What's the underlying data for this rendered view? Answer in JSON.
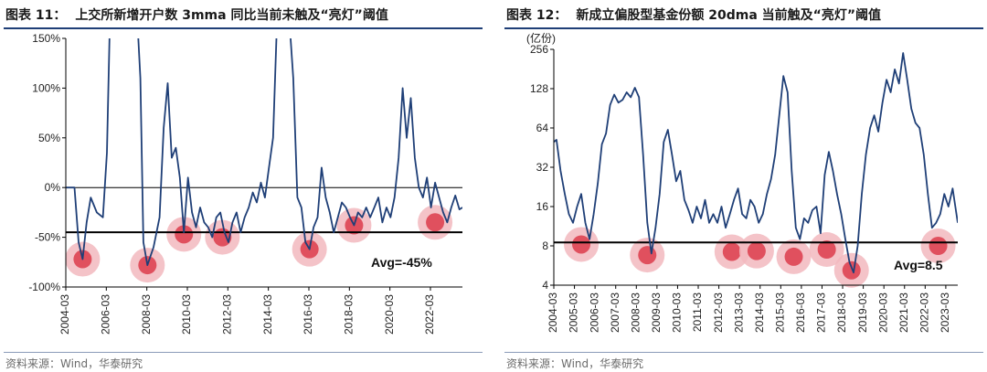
{
  "source_label": "资料来源：Wind，华泰研究",
  "chart_data": [
    {
      "id": "fig11",
      "type": "line",
      "figure_label": "图表 11：",
      "title": "上交所新增开户数 3mma 同比当前未触及“亮灯”阈值",
      "xlabel": "",
      "ylabel": "",
      "ylim": [
        -1.0,
        1.5
      ],
      "yticks": [
        -1.0,
        -0.5,
        0.0,
        0.5,
        1.0,
        1.5
      ],
      "ytick_labels": [
        "-100%",
        "-50%",
        "0%",
        "50%",
        "100%",
        "150%"
      ],
      "xlim": [
        2004.17,
        2023.75
      ],
      "xticks": [
        2004.17,
        2006.17,
        2008.17,
        2010.17,
        2012.17,
        2014.17,
        2016.17,
        2018.17,
        2020.17,
        2022.17
      ],
      "xtick_labels": [
        "2004-03",
        "2006-03",
        "2008-03",
        "2010-03",
        "2012-03",
        "2014-03",
        "2016-03",
        "2018-03",
        "2020-03",
        "2022-03"
      ],
      "grid": false,
      "legend": "none",
      "line_color": "#1f3f77",
      "threshold": {
        "value": -0.45,
        "label": "Avg=-45%"
      },
      "series": [
        {
          "x": [
            2004.17,
            2004.6,
            2004.8,
            2005.0,
            2005.2,
            2005.4,
            2005.7,
            2006.0,
            2006.2,
            2006.35,
            2006.5,
            2006.7,
            2006.9,
            2007.1,
            2007.3,
            2007.5,
            2007.7,
            2007.85,
            2008.0,
            2008.2,
            2008.5,
            2008.8,
            2009.0,
            2009.2,
            2009.4,
            2009.6,
            2009.8,
            2010.0,
            2010.2,
            2010.4,
            2010.6,
            2010.8,
            2011.0,
            2011.2,
            2011.4,
            2011.6,
            2011.8,
            2012.0,
            2012.2,
            2012.4,
            2012.6,
            2012.8,
            2013.0,
            2013.2,
            2013.4,
            2013.6,
            2013.8,
            2014.0,
            2014.2,
            2014.4,
            2014.6,
            2014.8,
            2015.0,
            2015.2,
            2015.4,
            2015.6,
            2015.8,
            2016.0,
            2016.2,
            2016.4,
            2016.6,
            2016.8,
            2017.0,
            2017.2,
            2017.4,
            2017.6,
            2017.8,
            2018.0,
            2018.2,
            2018.4,
            2018.6,
            2018.8,
            2019.0,
            2019.2,
            2019.4,
            2019.6,
            2019.8,
            2020.0,
            2020.2,
            2020.4,
            2020.6,
            2020.8,
            2021.0,
            2021.2,
            2021.4,
            2021.6,
            2021.8,
            2022.0,
            2022.2,
            2022.4,
            2022.6,
            2022.8,
            2023.0,
            2023.2,
            2023.4,
            2023.6,
            2023.75
          ],
          "y": [
            0.0,
            0.0,
            -0.55,
            -0.72,
            -0.35,
            -0.1,
            -0.25,
            -0.3,
            0.35,
            1.7,
            1.7,
            1.7,
            1.7,
            1.7,
            1.7,
            1.7,
            1.7,
            1.1,
            -0.55,
            -0.78,
            -0.6,
            -0.3,
            0.6,
            1.05,
            0.3,
            0.4,
            0.1,
            -0.45,
            0.1,
            -0.25,
            -0.4,
            -0.2,
            -0.35,
            -0.4,
            -0.5,
            -0.3,
            -0.25,
            -0.45,
            -0.55,
            -0.35,
            -0.25,
            -0.45,
            -0.3,
            -0.2,
            -0.05,
            -0.15,
            0.05,
            -0.1,
            0.2,
            0.5,
            1.7,
            1.7,
            1.7,
            1.7,
            1.1,
            -0.1,
            -0.2,
            -0.55,
            -0.62,
            -0.4,
            -0.3,
            0.2,
            -0.1,
            -0.25,
            -0.45,
            -0.3,
            -0.15,
            -0.2,
            -0.3,
            -0.38,
            -0.25,
            -0.3,
            -0.2,
            -0.3,
            -0.2,
            -0.1,
            -0.35,
            -0.2,
            -0.3,
            -0.1,
            0.3,
            1.0,
            0.5,
            0.9,
            0.3,
            0.0,
            -0.1,
            0.1,
            -0.2,
            0.05,
            -0.1,
            -0.25,
            -0.35,
            -0.2,
            -0.08,
            -0.22,
            -0.2
          ]
        }
      ],
      "highlights": [
        {
          "x": 2005.0,
          "y": -0.72
        },
        {
          "x": 2008.2,
          "y": -0.78
        },
        {
          "x": 2010.0,
          "y": -0.47
        },
        {
          "x": 2011.9,
          "y": -0.5
        },
        {
          "x": 2016.2,
          "y": -0.62
        },
        {
          "x": 2018.4,
          "y": -0.38
        },
        {
          "x": 2022.4,
          "y": -0.35
        }
      ]
    },
    {
      "id": "fig12",
      "type": "line",
      "figure_label": "图表 12：",
      "title": "新成立偏股型基金份额 20dma 当前触及“亮灯”阈值",
      "unit_label": "(亿份)",
      "xlabel": "",
      "ylabel": "",
      "yscale": "log2",
      "ylim": [
        4,
        256
      ],
      "yticks": [
        4,
        8,
        16,
        32,
        64,
        128,
        256
      ],
      "ytick_labels": [
        "4",
        "8",
        "16",
        "32",
        "64",
        "128",
        "256"
      ],
      "xlim": [
        2004.17,
        2023.75
      ],
      "xticks": [
        2004.17,
        2005.17,
        2006.17,
        2007.17,
        2008.17,
        2009.17,
        2010.17,
        2011.17,
        2012.17,
        2013.17,
        2014.17,
        2015.17,
        2016.17,
        2017.17,
        2018.17,
        2019.17,
        2020.17,
        2021.17,
        2022.17,
        2023.17
      ],
      "xtick_labels": [
        "2004-03",
        "2005-03",
        "2006-03",
        "2007-03",
        "2008-03",
        "2009-03",
        "2010-03",
        "2011-03",
        "2012-03",
        "2013-03",
        "2014-03",
        "2015-03",
        "2016-03",
        "2017-03",
        "2018-03",
        "2019-03",
        "2020-03",
        "2021-03",
        "2022-03",
        "2023-03"
      ],
      "grid": false,
      "legend": "none",
      "line_color": "#1f3f77",
      "threshold": {
        "value": 8.5,
        "label": "Avg=8.5"
      },
      "series": [
        {
          "x": [
            2004.17,
            2004.3,
            2004.5,
            2004.7,
            2004.9,
            2005.1,
            2005.3,
            2005.5,
            2005.7,
            2005.9,
            2006.1,
            2006.3,
            2006.5,
            2006.7,
            2006.9,
            2007.1,
            2007.3,
            2007.5,
            2007.7,
            2007.9,
            2008.1,
            2008.3,
            2008.5,
            2008.7,
            2008.9,
            2009.1,
            2009.3,
            2009.5,
            2009.7,
            2009.9,
            2010.1,
            2010.3,
            2010.5,
            2010.7,
            2010.9,
            2011.1,
            2011.3,
            2011.5,
            2011.7,
            2011.9,
            2012.1,
            2012.3,
            2012.5,
            2012.7,
            2012.9,
            2013.1,
            2013.3,
            2013.5,
            2013.7,
            2013.9,
            2014.1,
            2014.3,
            2014.5,
            2014.7,
            2014.9,
            2015.1,
            2015.3,
            2015.5,
            2015.7,
            2015.9,
            2016.1,
            2016.3,
            2016.5,
            2016.7,
            2016.9,
            2017.1,
            2017.3,
            2017.5,
            2017.7,
            2017.9,
            2018.1,
            2018.3,
            2018.5,
            2018.7,
            2018.9,
            2019.1,
            2019.3,
            2019.5,
            2019.7,
            2019.9,
            2020.1,
            2020.3,
            2020.5,
            2020.7,
            2020.9,
            2021.1,
            2021.3,
            2021.5,
            2021.7,
            2021.9,
            2022.1,
            2022.3,
            2022.5,
            2022.7,
            2022.9,
            2023.1,
            2023.3,
            2023.5,
            2023.75
          ],
          "y": [
            50,
            52,
            30,
            20,
            14,
            12,
            16,
            20,
            12,
            9,
            14,
            24,
            48,
            58,
            96,
            115,
            100,
            105,
            120,
            110,
            130,
            110,
            40,
            12,
            7,
            11,
            20,
            50,
            62,
            40,
            25,
            30,
            18,
            15,
            12,
            16,
            13,
            18,
            12,
            14,
            12,
            16,
            11,
            14,
            18,
            22,
            14,
            13,
            18,
            16,
            12,
            14,
            20,
            26,
            40,
            80,
            160,
            120,
            30,
            11,
            9,
            13,
            12,
            15,
            16,
            10,
            28,
            42,
            30,
            20,
            14,
            9,
            6,
            5,
            8,
            20,
            40,
            64,
            80,
            60,
            100,
            150,
            120,
            180,
            140,
            240,
            150,
            90,
            70,
            64,
            40,
            20,
            11,
            12,
            14,
            20,
            16,
            22,
            12
          ]
        }
      ],
      "highlights": [
        {
          "x": 2005.5,
          "y": 8.2
        },
        {
          "x": 2008.7,
          "y": 6.8
        },
        {
          "x": 2012.8,
          "y": 7.2
        },
        {
          "x": 2014.0,
          "y": 7.3
        },
        {
          "x": 2015.8,
          "y": 6.6
        },
        {
          "x": 2017.4,
          "y": 7.5
        },
        {
          "x": 2018.6,
          "y": 5.2
        },
        {
          "x": 2022.8,
          "y": 8.0
        }
      ]
    }
  ]
}
